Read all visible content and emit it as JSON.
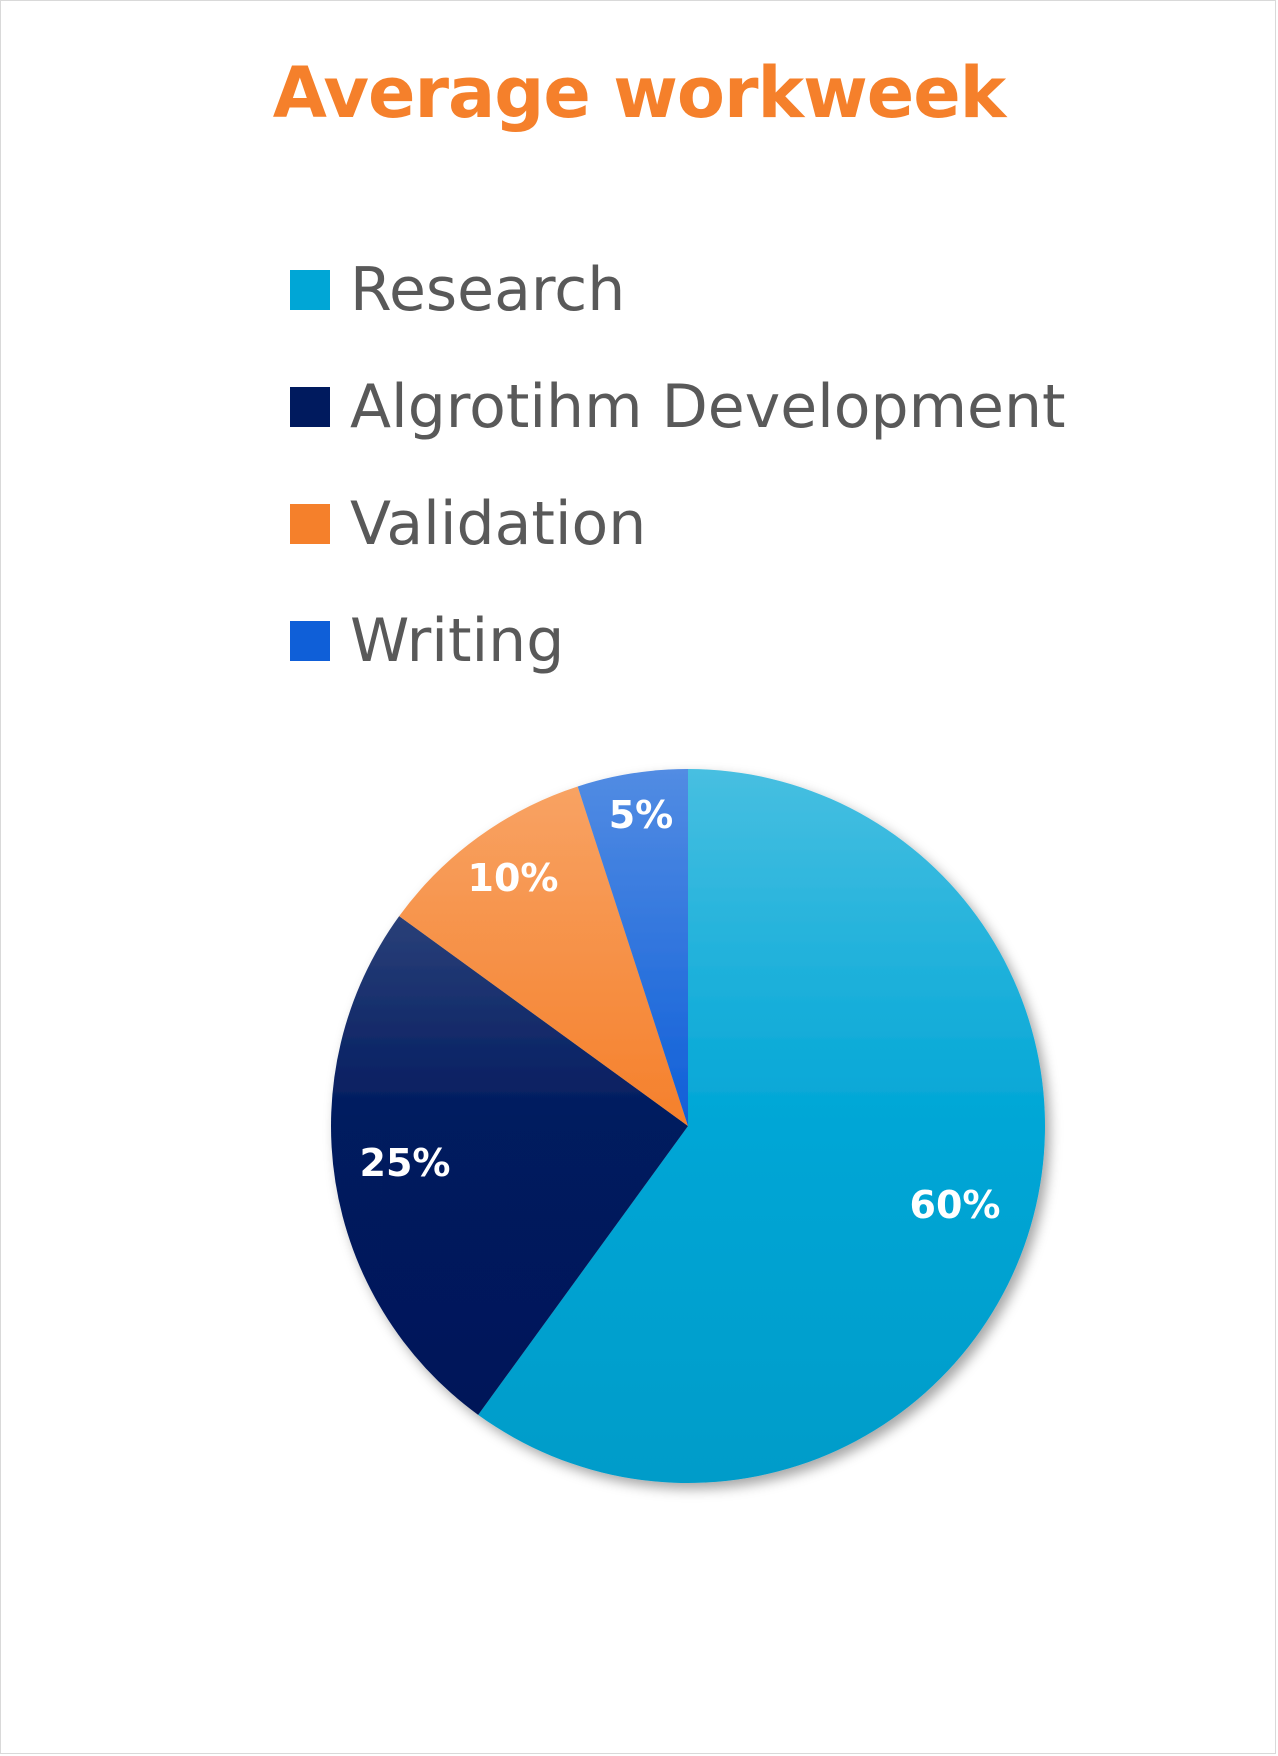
{
  "chart_data": {
    "type": "pie",
    "title": "Average workweek",
    "title_color": "#F5802B",
    "categories": [
      "Research",
      "Algrotihm Development",
      "Validation",
      "Writing"
    ],
    "values": [
      60,
      25,
      10,
      5
    ],
    "data_labels": [
      "60%",
      "25%",
      "10%",
      "5%"
    ],
    "colors": [
      "#00A6D6",
      "#001A5E",
      "#F5802B",
      "#0F5FD8"
    ],
    "legend_position": "top",
    "start_angle": "12 o'clock",
    "direction": "clockwise"
  }
}
